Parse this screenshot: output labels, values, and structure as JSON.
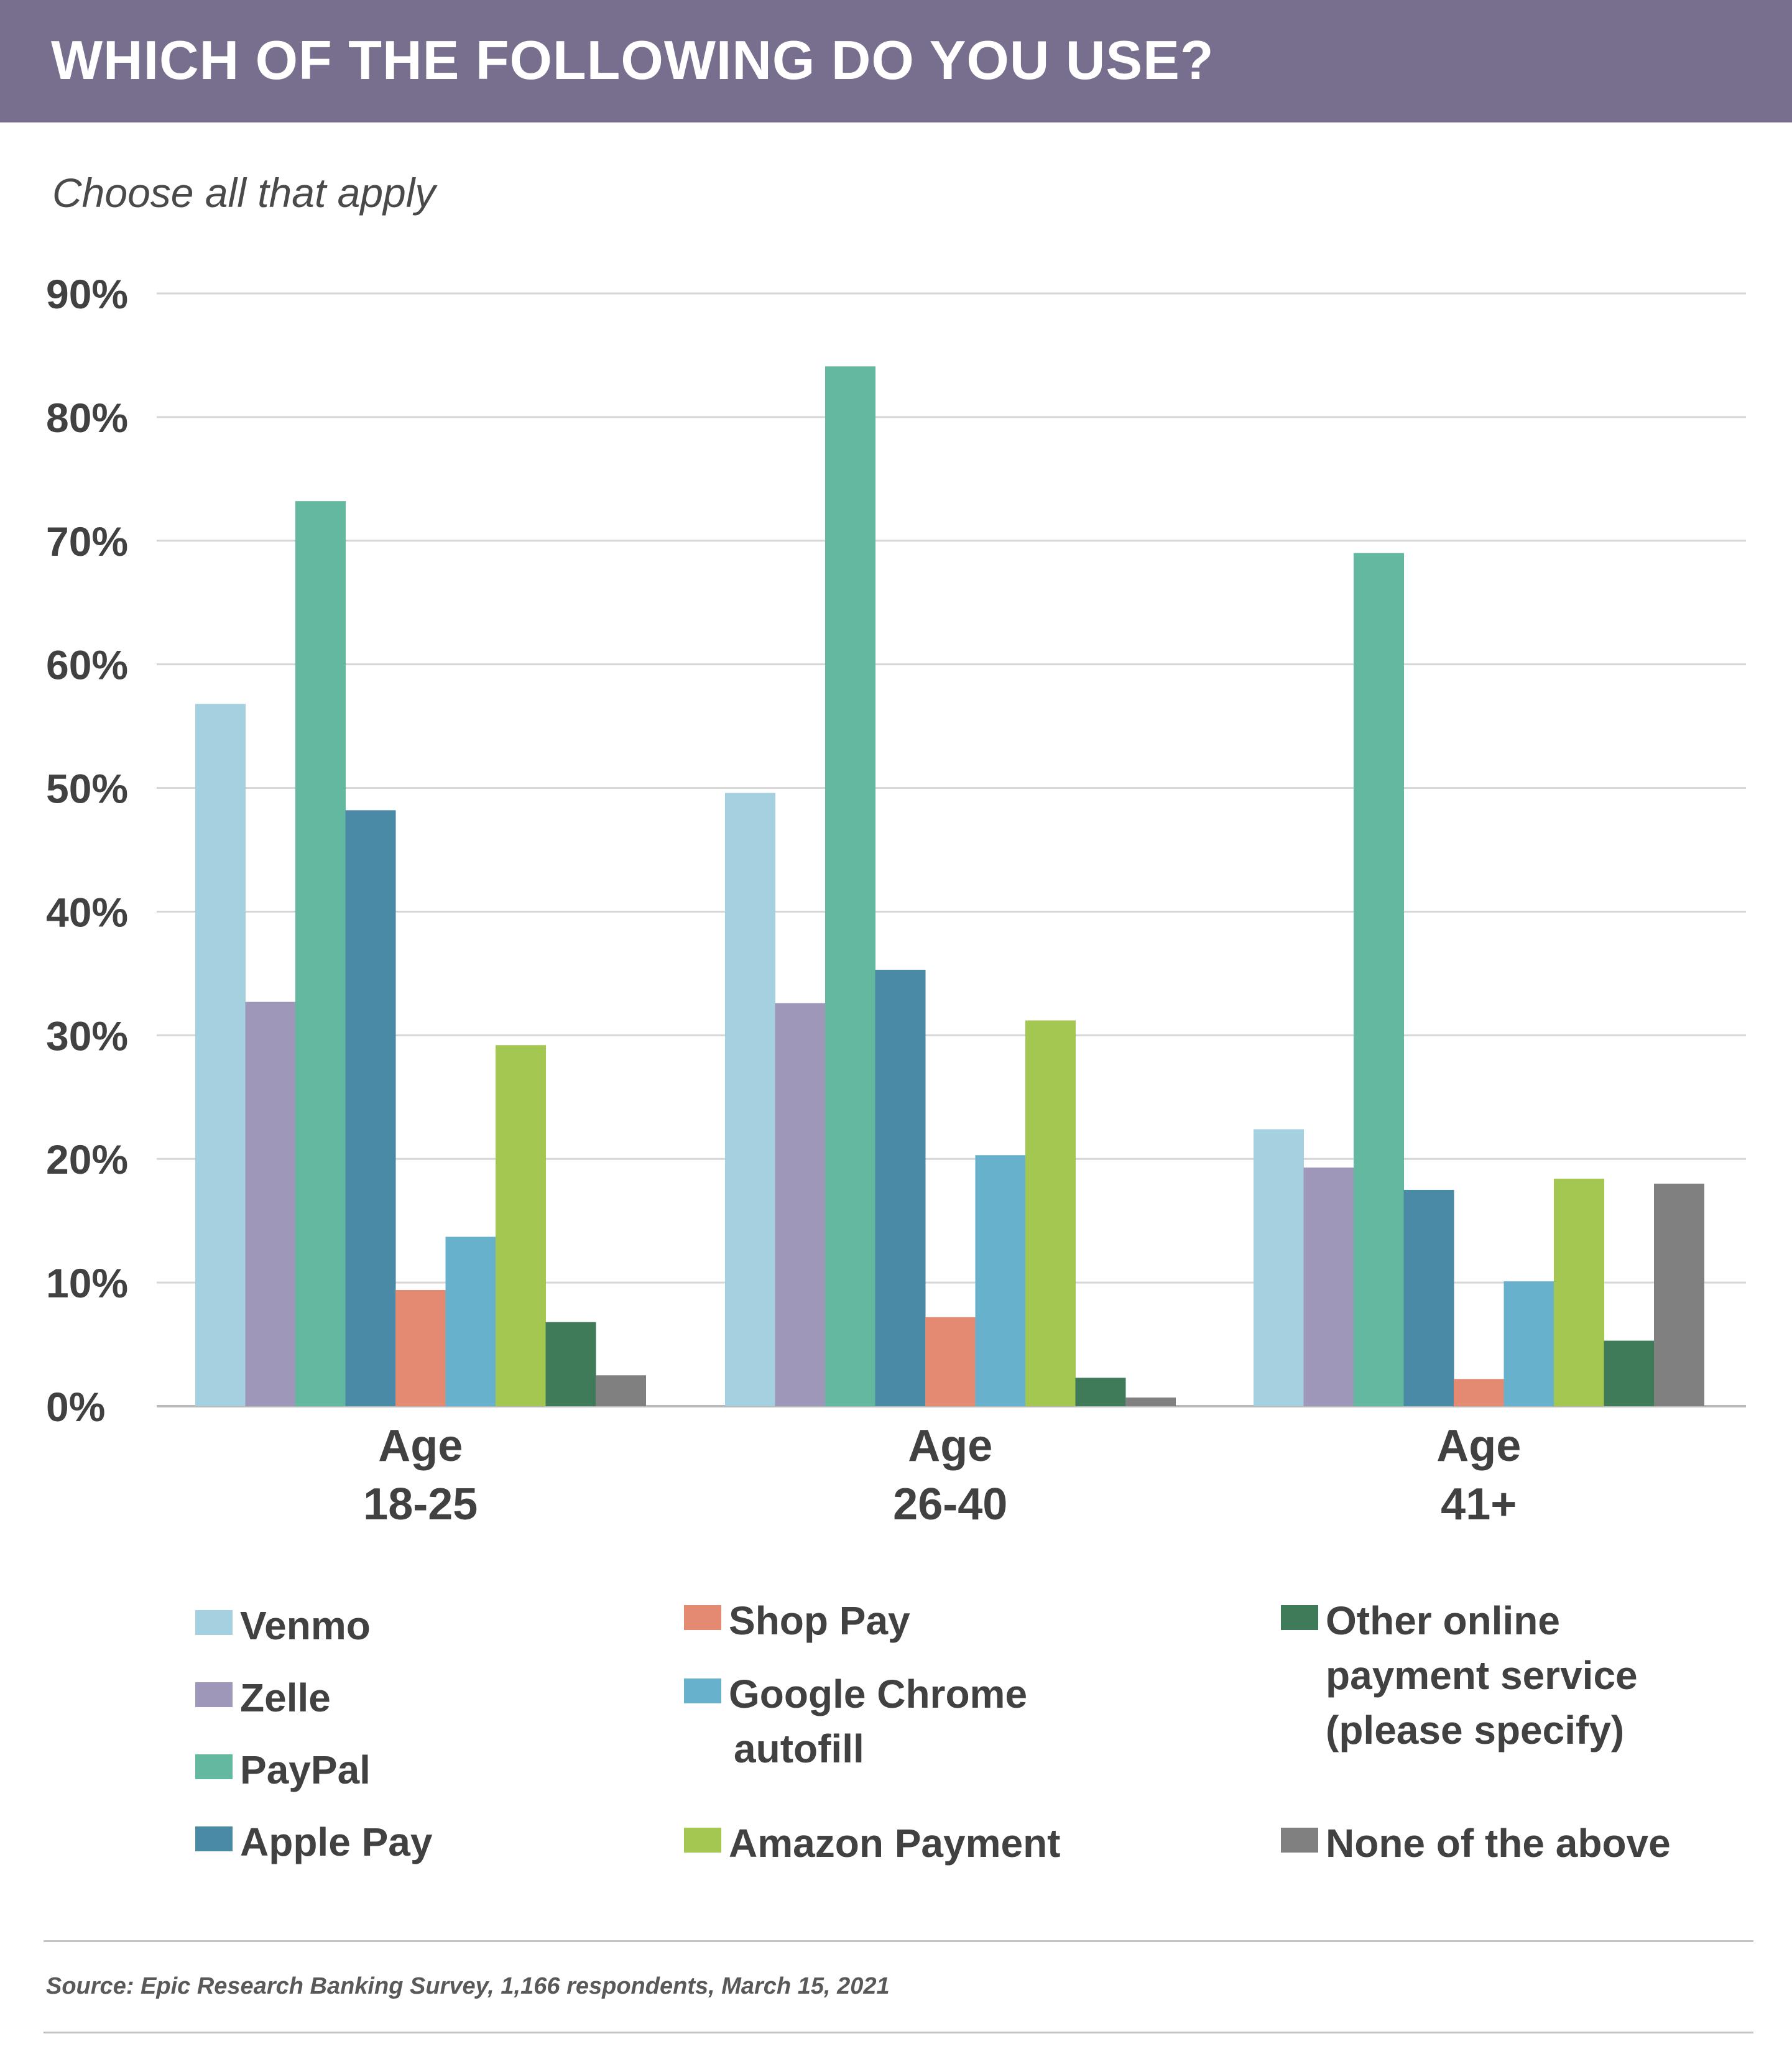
{
  "header": {
    "title": "WHICH OF THE FOLLOWING DO YOU USE?",
    "subtitle": "Choose all that apply"
  },
  "chart_data": {
    "type": "bar",
    "title": "WHICH OF THE FOLLOWING DO YOU USE?",
    "subtitle": "Choose all that apply",
    "categories": [
      [
        "Age",
        "18-25"
      ],
      [
        "Age",
        "26-40"
      ],
      [
        "Age",
        "41+"
      ]
    ],
    "ylim": [
      0,
      90
    ],
    "yticks": [
      "0%",
      "10%",
      "20%",
      "30%",
      "40%",
      "50%",
      "60%",
      "70%",
      "80%",
      "90%"
    ],
    "grid": true,
    "legend_position": "bottom",
    "series": [
      {
        "name": "Venmo",
        "color": "#a5d0e0",
        "values": [
          56.8,
          49.6,
          22.4
        ]
      },
      {
        "name": "Zelle",
        "color": "#9e97b9",
        "values": [
          32.7,
          32.6,
          19.3
        ]
      },
      {
        "name": "PayPal",
        "color": "#63b8a0",
        "values": [
          73.2,
          84.1,
          69.0
        ]
      },
      {
        "name": "Apple Pay",
        "color": "#4a8aa6",
        "values": [
          48.2,
          35.3,
          17.5
        ]
      },
      {
        "name": "Shop Pay",
        "color": "#e48a72",
        "values": [
          9.4,
          7.2,
          2.2
        ]
      },
      {
        "name": "Google Chrome autofill",
        "color": "#68b1cd",
        "values": [
          13.7,
          20.3,
          10.1
        ]
      },
      {
        "name": "Amazon Payment",
        "color": "#a4c752",
        "values": [
          29.2,
          31.2,
          18.4
        ]
      },
      {
        "name": "Other online payment service (please specify)",
        "color": "#3f7b58",
        "values": [
          6.8,
          2.3,
          5.3
        ]
      },
      {
        "name": "None of the above",
        "color": "#808080",
        "values": [
          2.5,
          0.7,
          18.0
        ]
      }
    ]
  },
  "legend": [
    {
      "lines": [
        "Venmo"
      ],
      "color": "#a5d0e0"
    },
    {
      "lines": [
        "Zelle"
      ],
      "color": "#9e97b9"
    },
    {
      "lines": [
        "PayPal"
      ],
      "color": "#63b8a0"
    },
    {
      "lines": [
        "Apple Pay"
      ],
      "color": "#4a8aa6"
    },
    {
      "lines": [
        "Shop Pay"
      ],
      "color": "#e48a72"
    },
    {
      "lines": [
        "Google Chrome",
        "autofill"
      ],
      "color": "#68b1cd"
    },
    {
      "lines": [
        "Amazon Payment"
      ],
      "color": "#a4c752"
    },
    {
      "lines": [
        "Other online",
        "payment service",
        "(please specify)"
      ],
      "color": "#3f7b58"
    },
    {
      "lines": [
        "None of the above"
      ],
      "color": "#808080"
    }
  ],
  "footer": {
    "source": "Source: Epic Research Banking Survey, 1,166 respondents, March 15, 2021"
  }
}
